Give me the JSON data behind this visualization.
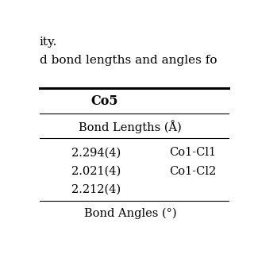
{
  "subtitle_text": "ity.",
  "title_text": "d bond lengths and angles fo",
  "col5_header": "Co5",
  "section_header": "Bond Lengths (Å)",
  "rows": [
    {
      "value": "2.294(4)",
      "label": "Co1-Cl1"
    },
    {
      "value": "2.021(4)",
      "label": "Co1-Cl2"
    },
    {
      "value": "2.212(4)",
      "label": ""
    }
  ],
  "bottom_text": "Bond Angles (°)",
  "bg_color": "#ffffff",
  "text_color": "#000000",
  "line_color": "#000000"
}
